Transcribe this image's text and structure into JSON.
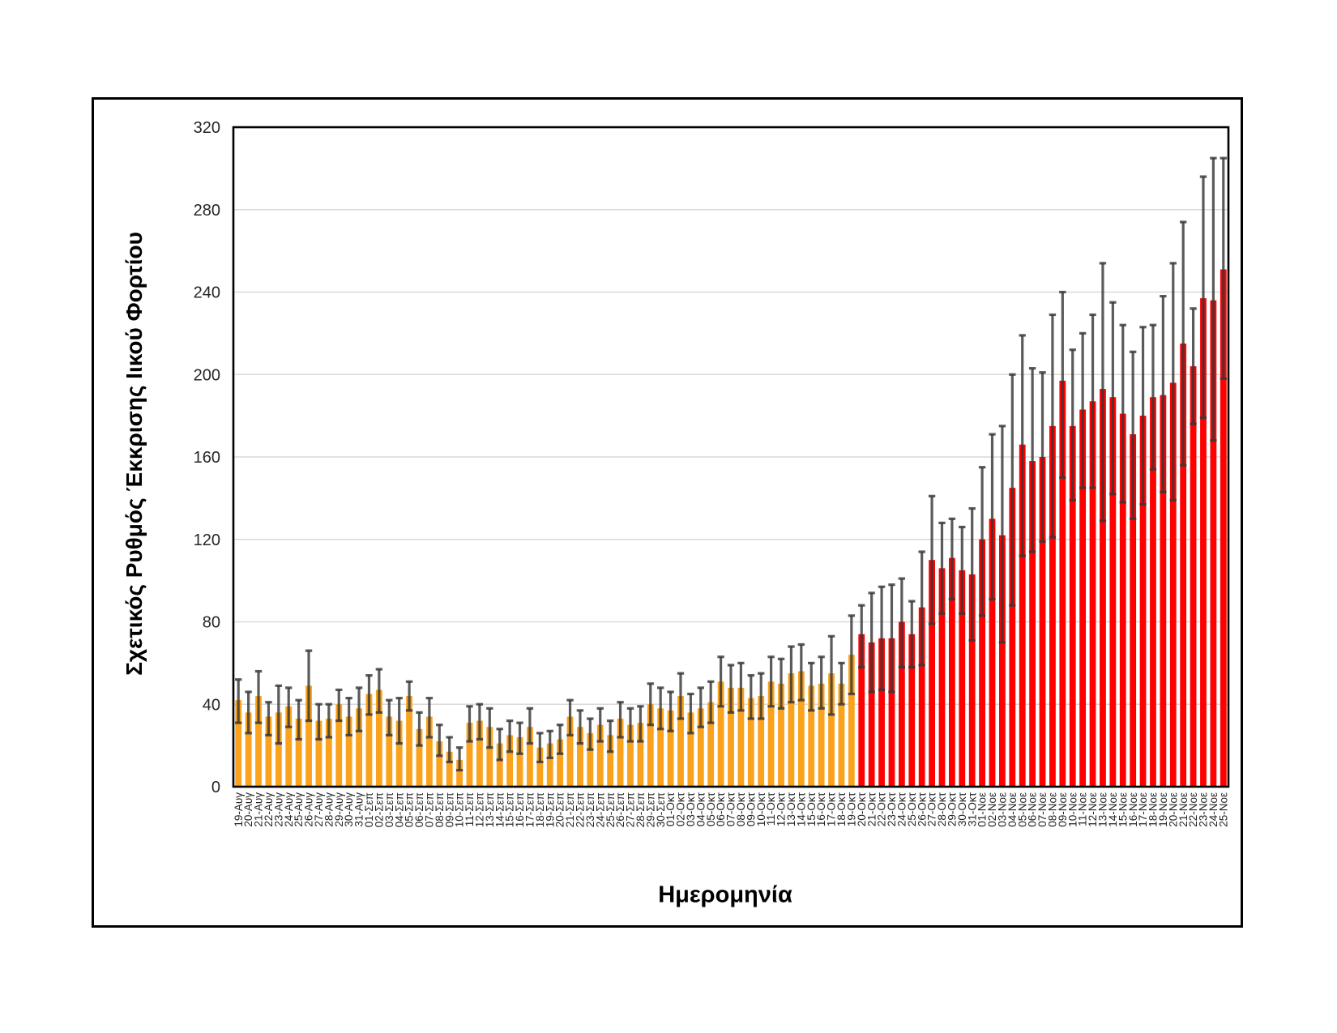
{
  "figure": {
    "background_color": "#ffffff",
    "frame_border_color": "#000000"
  },
  "chart_data": {
    "type": "bar",
    "title": "",
    "xlabel": "Ημερομηνία",
    "ylabel": "Σχετικός Ρυθμός Έκκρισης Ιικού Φορτίου",
    "ylim": [
      0,
      320
    ],
    "yticks": [
      0,
      40,
      80,
      120,
      160,
      200,
      240,
      280,
      320
    ],
    "grid": "horizontal",
    "legend": "none",
    "error_bars": true,
    "series_note": "bars colored orange through 19-Οκτ, red from 20-Οκτ onward",
    "orange_count": 62,
    "colors": {
      "early_bars": "#FAA21C",
      "late_bars": "#FF0000",
      "error_bars": "#595959",
      "gridline": "#D9D9D9",
      "axis_line": "#000000",
      "tick_text": "#262626"
    },
    "categories": [
      "19-Αυγ",
      "20-Αυγ",
      "21-Αυγ",
      "22-Αυγ",
      "23-Αυγ",
      "24-Αυγ",
      "25-Αυγ",
      "26-Αυγ",
      "27-Αυγ",
      "28-Αυγ",
      "29-Αυγ",
      "30-Αυγ",
      "31-Αυγ",
      "01-Σεπ",
      "02-Σεπ",
      "03-Σεπ",
      "04-Σεπ",
      "05-Σεπ",
      "06-Σεπ",
      "07-Σεπ",
      "08-Σεπ",
      "09-Σεπ",
      "10-Σεπ",
      "11-Σεπ",
      "12-Σεπ",
      "13-Σεπ",
      "14-Σεπ",
      "15-Σεπ",
      "16-Σεπ",
      "17-Σεπ",
      "18-Σεπ",
      "19-Σεπ",
      "20-Σεπ",
      "21-Σεπ",
      "22-Σεπ",
      "23-Σεπ",
      "24-Σεπ",
      "25-Σεπ",
      "26-Σεπ",
      "27-Σεπ",
      "28-Σεπ",
      "29-Σεπ",
      "30-Σεπ",
      "01-Οκτ",
      "02-Οκτ",
      "03-Οκτ",
      "04-Οκτ",
      "05-Οκτ",
      "06-Οκτ",
      "07-Οκτ",
      "08-Οκτ",
      "09-Οκτ",
      "10-Οκτ",
      "11-Οκτ",
      "12-Οκτ",
      "13-Οκτ",
      "14-Οκτ",
      "15-Οκτ",
      "16-Οκτ",
      "17-Οκτ",
      "18-Οκτ",
      "19-Οκτ",
      "20-Οκτ",
      "21-Οκτ",
      "22-Οκτ",
      "23-Οκτ",
      "24-Οκτ",
      "25-Οκτ",
      "26-Οκτ",
      "27-Οκτ",
      "28-Οκτ",
      "29-Οκτ",
      "30-Οκτ",
      "31-Οκτ",
      "01-Νοε",
      "02-Νοε",
      "03-Νοε",
      "04-Νοε",
      "05-Νοε",
      "06-Νοε",
      "07-Νοε",
      "08-Νοε",
      "09-Νοε",
      "10-Νοε",
      "11-Νοε",
      "12-Νοε",
      "13-Νοε",
      "14-Νοε",
      "15-Νοε",
      "16-Νοε",
      "17-Νοε",
      "18-Νοε",
      "19-Νοε",
      "20-Νοε",
      "21-Νοε",
      "22-Νοε",
      "23-Νοε",
      "24-Νοε",
      "25-Νοε"
    ],
    "values": [
      42,
      36,
      44,
      34,
      36,
      39,
      33,
      49,
      32,
      33,
      40,
      34,
      38,
      45,
      47,
      34,
      32,
      44,
      28,
      34,
      22,
      17,
      13,
      31,
      32,
      29,
      21,
      25,
      24,
      29,
      19,
      21,
      23,
      34,
      29,
      26,
      30,
      25,
      33,
      30,
      31,
      40,
      38,
      37,
      44,
      36,
      38,
      41,
      51,
      48,
      48,
      43,
      44,
      51,
      50,
      55,
      56,
      49,
      50,
      55,
      50,
      64,
      74,
      70,
      72,
      72,
      80,
      74,
      87,
      110,
      106,
      111,
      105,
      103,
      120,
      130,
      122,
      145,
      166,
      158,
      160,
      175,
      197,
      175,
      183,
      187,
      193,
      189,
      181,
      171,
      180,
      189,
      190,
      196,
      215,
      204,
      237,
      236,
      251
    ],
    "error_low": [
      31,
      26,
      31,
      25,
      21,
      29,
      23,
      32,
      23,
      24,
      32,
      25,
      27,
      35,
      36,
      25,
      21,
      37,
      20,
      24,
      15,
      12,
      8,
      22,
      23,
      19,
      13,
      17,
      16,
      21,
      12,
      14,
      16,
      25,
      21,
      18,
      22,
      17,
      24,
      22,
      22,
      30,
      28,
      27,
      33,
      26,
      29,
      31,
      39,
      36,
      37,
      33,
      33,
      39,
      38,
      41,
      42,
      37,
      38,
      35,
      40,
      45,
      58,
      46,
      47,
      46,
      58,
      58,
      59,
      79,
      84,
      91,
      84,
      71,
      83,
      91,
      70,
      88,
      112,
      114,
      119,
      121,
      150,
      139,
      145,
      145,
      129,
      142,
      138,
      130,
      137,
      154,
      143,
      139,
      156,
      176,
      179,
      168,
      198
    ],
    "error_high": [
      52,
      46,
      56,
      41,
      49,
      48,
      42,
      66,
      40,
      40,
      47,
      43,
      48,
      54,
      57,
      42,
      43,
      51,
      36,
      43,
      30,
      24,
      19,
      39,
      40,
      38,
      28,
      32,
      31,
      38,
      26,
      27,
      30,
      42,
      37,
      33,
      38,
      32,
      41,
      38,
      39,
      50,
      48,
      46,
      55,
      45,
      48,
      51,
      63,
      59,
      60,
      54,
      55,
      63,
      62,
      68,
      69,
      60,
      63,
      73,
      60,
      83,
      88,
      94,
      97,
      98,
      101,
      90,
      114,
      141,
      128,
      130,
      126,
      135,
      155,
      171,
      175,
      200,
      219,
      203,
      201,
      229,
      240,
      212,
      220,
      229,
      254,
      235,
      224,
      211,
      223,
      224,
      238,
      254,
      274,
      232,
      296,
      305,
      305
    ]
  }
}
